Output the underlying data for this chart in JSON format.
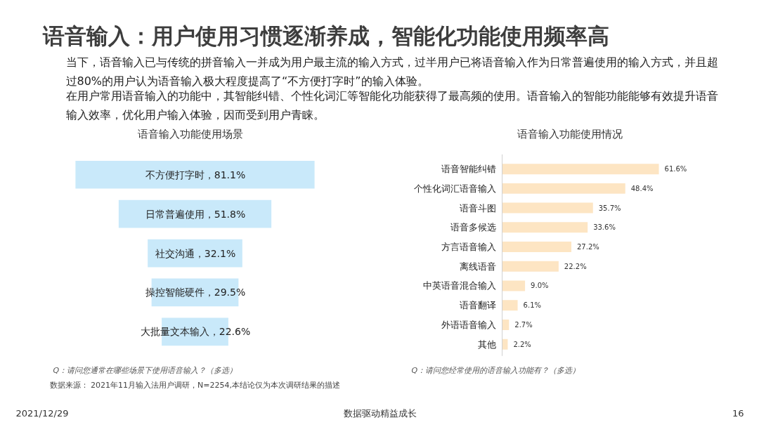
{
  "chart_data": [
    {
      "type": "other",
      "title": "语音输入：用户使用习惯逐渐养成，智能化功能使用频率高",
      "annotations": [
        "当下，语音输入已与传统的拼音输入一并成为用户最主流的输入方式，过半用户已将语音输入作为日常普遍使用的输入方式，并且超过80%的用户认为语音输入极大程度提高了“不方便打字时”的输入体验。",
        "在用户常用语音输入的功能中，其智能纠错、个性化词汇等智能化功能获得了最高频的使用。语音输入的智能功能能够有效提升语音输入效率，优化用户输入体验，因而受到用户青睐。"
      ]
    },
    {
      "type": "other",
      "title": "语音输入功能使用场景",
      "categories": [
        "不方便打字时",
        "日常普遍使用",
        "社交沟通",
        "操控智能硬件",
        "大批量文本输入"
      ],
      "values": [
        81.1,
        51.8,
        32.1,
        29.5,
        22.6
      ],
      "value_labels": [
        "，81.1%",
        "，51.8%",
        "，32.1%",
        "，29.5%",
        "，22.6%"
      ],
      "color": "#c9e9fa",
      "annotations": [
        "Q：请问您通常在哪些场景下使用语音输入？（多选）"
      ]
    },
    {
      "type": "bar",
      "orientation": "horizontal",
      "title": "语音输入功能使用情况",
      "categories": [
        "语音智能纠错",
        "个性化词汇语音输入",
        "语音斗图",
        "语音多候选",
        "方言语音输入",
        "离线语音",
        "中英语音混合输入",
        "语音翻译",
        "外语语音输入",
        "其他"
      ],
      "values": [
        61.6,
        48.4,
        35.7,
        33.6,
        27.2,
        22.2,
        9.0,
        6.1,
        2.7,
        2.2
      ],
      "value_labels": [
        "61.6%",
        "48.4%",
        "35.7%",
        "33.6%",
        "27.2%",
        "22.2%",
        "9.0%",
        "6.1%",
        "2.7%",
        "2.2%"
      ],
      "color": "#fde5c3",
      "annotations": [
        "Q：请问您经常使用的语音输入功能有？（多选）"
      ]
    },
    {
      "type": "other",
      "annotations": [
        "数据来源： 2021年11月输入法用户调研，N=2254,本结论仅为本次调研结果的描述",
        "2021/12/29",
        "数据驱动精益成长",
        "16"
      ]
    }
  ]
}
